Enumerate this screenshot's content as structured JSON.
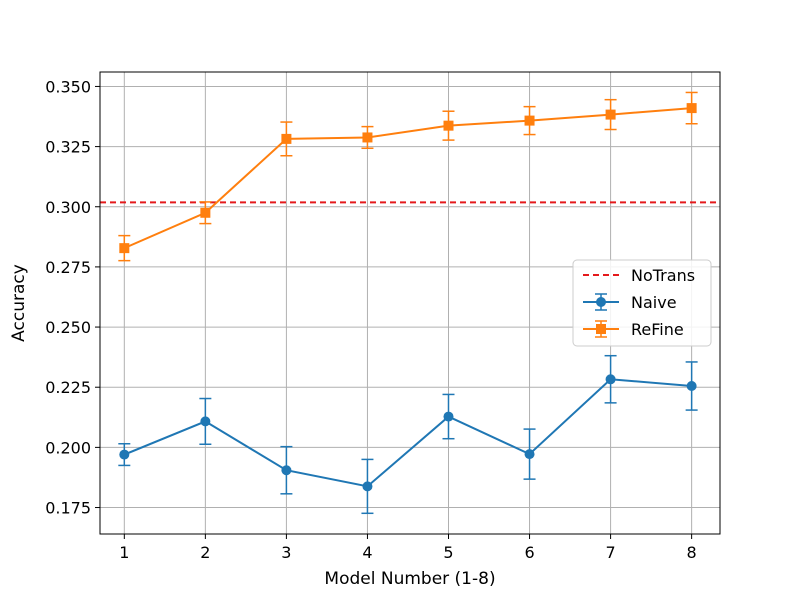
{
  "chart_data": {
    "type": "line",
    "title": "",
    "xlabel": "Model Number (1-8)",
    "ylabel": "Accuracy",
    "x": [
      1,
      2,
      3,
      4,
      5,
      6,
      7,
      8
    ],
    "x_ticks": [
      "1",
      "2",
      "3",
      "4",
      "5",
      "6",
      "7",
      "8"
    ],
    "xlim": [
      0.7,
      8.35
    ],
    "ylim": [
      0.164,
      0.356
    ],
    "y_ticks": [
      0.175,
      0.2,
      0.225,
      0.25,
      0.275,
      0.3,
      0.325,
      0.35
    ],
    "y_tick_labels": [
      "0.175",
      "0.200",
      "0.225",
      "0.250",
      "0.275",
      "0.300",
      "0.325",
      "0.350"
    ],
    "grid": true,
    "legend_position": "center-right",
    "reference_line": {
      "name": "NoTrans",
      "value": 0.3018,
      "color": "#e41a1c",
      "style": "dashed"
    },
    "series": [
      {
        "name": "Naive",
        "marker": "circle",
        "color": "#1f77b4",
        "values": [
          0.197,
          0.2108,
          0.1905,
          0.1838,
          0.2128,
          0.1972,
          0.2283,
          0.2255
        ],
        "errors": [
          0.0045,
          0.0095,
          0.0098,
          0.0112,
          0.0092,
          0.0104,
          0.0098,
          0.01
        ]
      },
      {
        "name": "ReFine",
        "marker": "square",
        "color": "#ff7f0e",
        "values": [
          0.2828,
          0.2975,
          0.3282,
          0.3288,
          0.3337,
          0.3358,
          0.3383,
          0.341
        ],
        "errors": [
          0.0052,
          0.0045,
          0.007,
          0.0045,
          0.006,
          0.0058,
          0.0062,
          0.0065
        ]
      }
    ]
  }
}
